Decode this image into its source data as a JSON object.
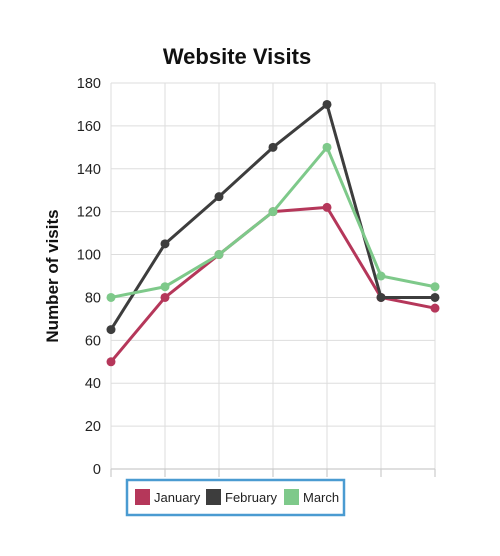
{
  "chart_data": {
    "type": "line",
    "title": "Website Visits",
    "xlabel": "",
    "ylabel": "Number of visits",
    "ylim": [
      0,
      180
    ],
    "yticks": [
      0,
      20,
      40,
      60,
      80,
      100,
      120,
      140,
      160,
      180
    ],
    "x": [
      1,
      2,
      3,
      4,
      5,
      6,
      7
    ],
    "grid": true,
    "legend_position": "bottom-center",
    "legend_frame_color": "#4a9bd1",
    "series": [
      {
        "name": "January",
        "color": "#b5375a",
        "values": [
          50,
          80,
          100,
          120,
          122,
          80,
          75
        ]
      },
      {
        "name": "February",
        "color": "#3d3d3d",
        "values": [
          65,
          105,
          127,
          150,
          170,
          80,
          80
        ]
      },
      {
        "name": "March",
        "color": "#7ec98a",
        "values": [
          80,
          85,
          100,
          120,
          150,
          90,
          85
        ]
      }
    ]
  }
}
